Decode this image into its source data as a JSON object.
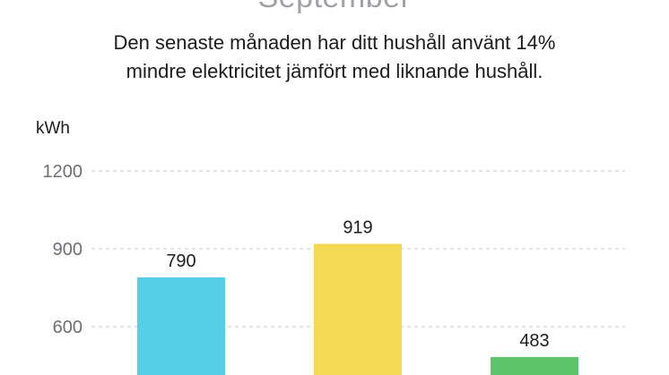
{
  "header": {
    "month_title": "September",
    "summary_line1": "Den senaste månaden har ditt hushåll använt 14%",
    "summary_line2": "mindre elektricitet jämfört med liknande hushåll."
  },
  "colors": {
    "bar_1": "#55cfe8",
    "bar_2": "#f5d955",
    "bar_3": "#5ec46c",
    "grid": "#c8c8cc",
    "tick_label": "#6e6e73",
    "value_label": "#1c1c1e"
  },
  "chart_data": {
    "type": "bar",
    "ylabel": "kWh",
    "yticks": [
      600,
      900,
      1200
    ],
    "ylim": [
      0,
      1200
    ],
    "grid": true,
    "grid_style": "dashed",
    "values": [
      790,
      919,
      483
    ]
  }
}
